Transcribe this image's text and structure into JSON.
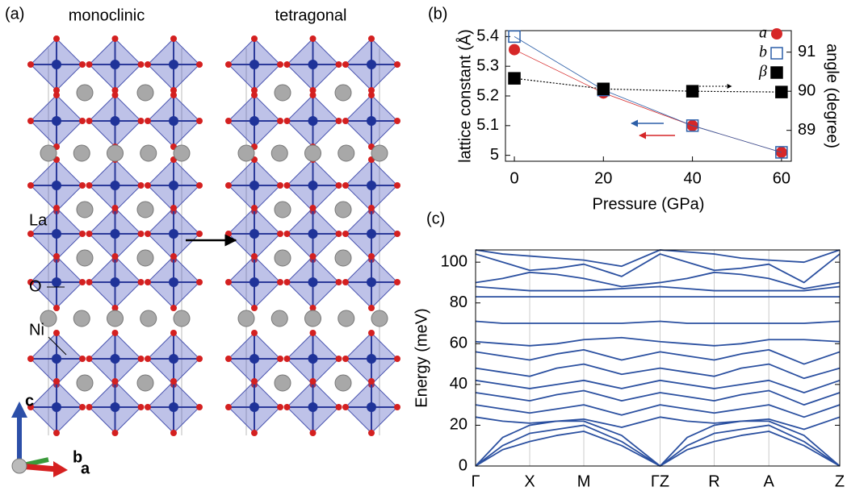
{
  "panel_a": {
    "label": "(a)",
    "left_title": "monoclinic",
    "right_title": "tetragonal",
    "atoms": [
      "La",
      "O",
      "Ni"
    ],
    "axes": [
      "c",
      "b",
      "a"
    ]
  },
  "chart_data": [
    {
      "type": "line",
      "label": "(b)",
      "xlabel": "Pressure (GPa)",
      "ylabel": "lattice constant (Å)",
      "y2label": "angle (degree)",
      "x": [
        0,
        20,
        40,
        60
      ],
      "series": [
        {
          "name": "a",
          "color": "#d62728",
          "marker": "circle",
          "values": [
            5.356,
            5.21,
            5.1,
            5.01
          ]
        },
        {
          "name": "b",
          "color": "#2c5fa8",
          "marker": "open-square",
          "values": [
            5.4,
            5.22,
            5.1,
            5.01
          ]
        },
        {
          "name": "β",
          "color": "#000000",
          "marker": "square",
          "line_style": "dotted",
          "axis": "y2",
          "values": [
            90.33,
            90.06,
            90.0,
            89.98
          ]
        }
      ],
      "xlim": [
        -2,
        62.2
      ],
      "xticks": [
        0,
        20,
        40,
        60
      ],
      "ylim": [
        4.98,
        5.42
      ],
      "yticks": [
        5,
        5.1,
        5.2,
        5.3,
        5.4
      ],
      "y2lim": [
        88.21,
        91.55
      ],
      "y2ticks": [
        89,
        90,
        91
      ],
      "legend": "upper right"
    },
    {
      "type": "bands",
      "label": "(c)",
      "ylabel": "Energy (meV)",
      "color": "#2b50a0",
      "grid": "x",
      "x": [
        0,
        0.5,
        1,
        1.5,
        2,
        2.7,
        3.41,
        3.91,
        4.41,
        4.91,
        5.42,
        6.07,
        6.73
      ],
      "xlim": [
        0,
        6.73
      ],
      "xticks": [
        {
          "value": 0,
          "label": "Γ"
        },
        {
          "value": 1,
          "label": "X"
        },
        {
          "value": 2,
          "label": "M"
        },
        {
          "value": 3.41,
          "label": "ΓZ"
        },
        {
          "value": 4.41,
          "label": "R"
        },
        {
          "value": 5.42,
          "label": "A"
        },
        {
          "value": 6.73,
          "label": "Z"
        }
      ],
      "ylim": [
        0,
        106
      ],
      "yticks": [
        0,
        20,
        40,
        60,
        80,
        100
      ],
      "series": [
        {
          "values": [
            106,
            104,
            103,
            102,
            101,
            98,
            106,
            105,
            104,
            102,
            101,
            100,
            106
          ]
        },
        {
          "values": [
            104,
            100,
            96,
            97,
            99,
            93,
            104,
            100,
            96,
            97,
            99,
            90,
            104
          ]
        },
        {
          "values": [
            90,
            92,
            95,
            94,
            92,
            88,
            90,
            92,
            95,
            94,
            92,
            87,
            90
          ]
        },
        {
          "values": [
            88,
            87,
            86,
            86,
            86,
            87,
            88,
            87,
            86,
            86,
            86,
            86,
            88
          ]
        },
        {
          "values": [
            83,
            83,
            83,
            83,
            83,
            83,
            83,
            83,
            83,
            83,
            83,
            83,
            83
          ]
        },
        {
          "values": [
            71,
            70,
            70,
            70,
            70,
            70,
            71,
            70,
            70,
            70,
            70,
            70,
            71
          ]
        },
        {
          "values": [
            61,
            60,
            59,
            60,
            62,
            63,
            61,
            60,
            59,
            60,
            62,
            62,
            61
          ]
        },
        {
          "values": [
            56,
            54,
            52,
            55,
            57,
            52,
            56,
            54,
            52,
            55,
            57,
            50,
            56
          ]
        },
        {
          "values": [
            48,
            46,
            44,
            48,
            50,
            45,
            48,
            46,
            44,
            48,
            50,
            43,
            48
          ]
        },
        {
          "values": [
            42,
            40,
            38,
            40,
            42,
            38,
            42,
            40,
            38,
            40,
            42,
            36,
            42
          ]
        },
        {
          "values": [
            36,
            34,
            32,
            35,
            37,
            32,
            36,
            34,
            32,
            35,
            37,
            30,
            36
          ]
        },
        {
          "values": [
            30,
            28,
            26,
            28,
            30,
            25,
            30,
            28,
            26,
            28,
            30,
            24,
            30
          ]
        },
        {
          "values": [
            24,
            22,
            21,
            22,
            23,
            19,
            24,
            22,
            21,
            22,
            23,
            18,
            24
          ]
        },
        {
          "values": [
            0,
            8,
            12,
            15,
            17,
            10,
            0,
            8,
            12,
            15,
            17,
            10,
            0
          ]
        },
        {
          "values": [
            0,
            10,
            16,
            18,
            20,
            12,
            0,
            10,
            16,
            18,
            20,
            12,
            0
          ]
        },
        {
          "values": [
            0,
            14,
            20,
            22,
            22,
            15,
            0,
            14,
            20,
            22,
            22,
            15,
            0
          ]
        }
      ]
    }
  ]
}
